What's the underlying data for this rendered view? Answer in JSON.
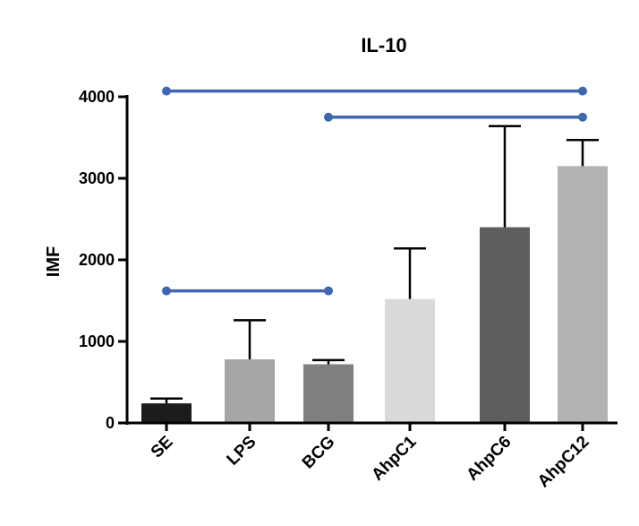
{
  "chart_data": {
    "type": "bar",
    "title": "IL-10",
    "ylabel": "IMF",
    "xlabel": "",
    "ylim": [
      0,
      4000
    ],
    "yticks": [
      0,
      1000,
      2000,
      3000,
      4000
    ],
    "categories": [
      "SE",
      "LPS",
      "BCG",
      "AhpC1",
      "AhpC6",
      "AhpC12"
    ],
    "values": [
      240,
      780,
      720,
      1520,
      2400,
      3150
    ],
    "errors": [
      60,
      480,
      50,
      620,
      1240,
      320
    ],
    "colors": [
      "#1c1c1c",
      "#a6a6a6",
      "#808080",
      "#d9d9d9",
      "#5e5e5e",
      "#b3b3b3"
    ],
    "significance": [
      {
        "from": "SE",
        "to": "AhpC12",
        "y": 4070
      },
      {
        "from": "BCG",
        "to": "AhpC12",
        "y": 3750
      },
      {
        "from": "SE",
        "to": "BCG",
        "y": 1620
      }
    ],
    "sig_color": "#3f66b0",
    "grid": false,
    "legend": "none"
  }
}
